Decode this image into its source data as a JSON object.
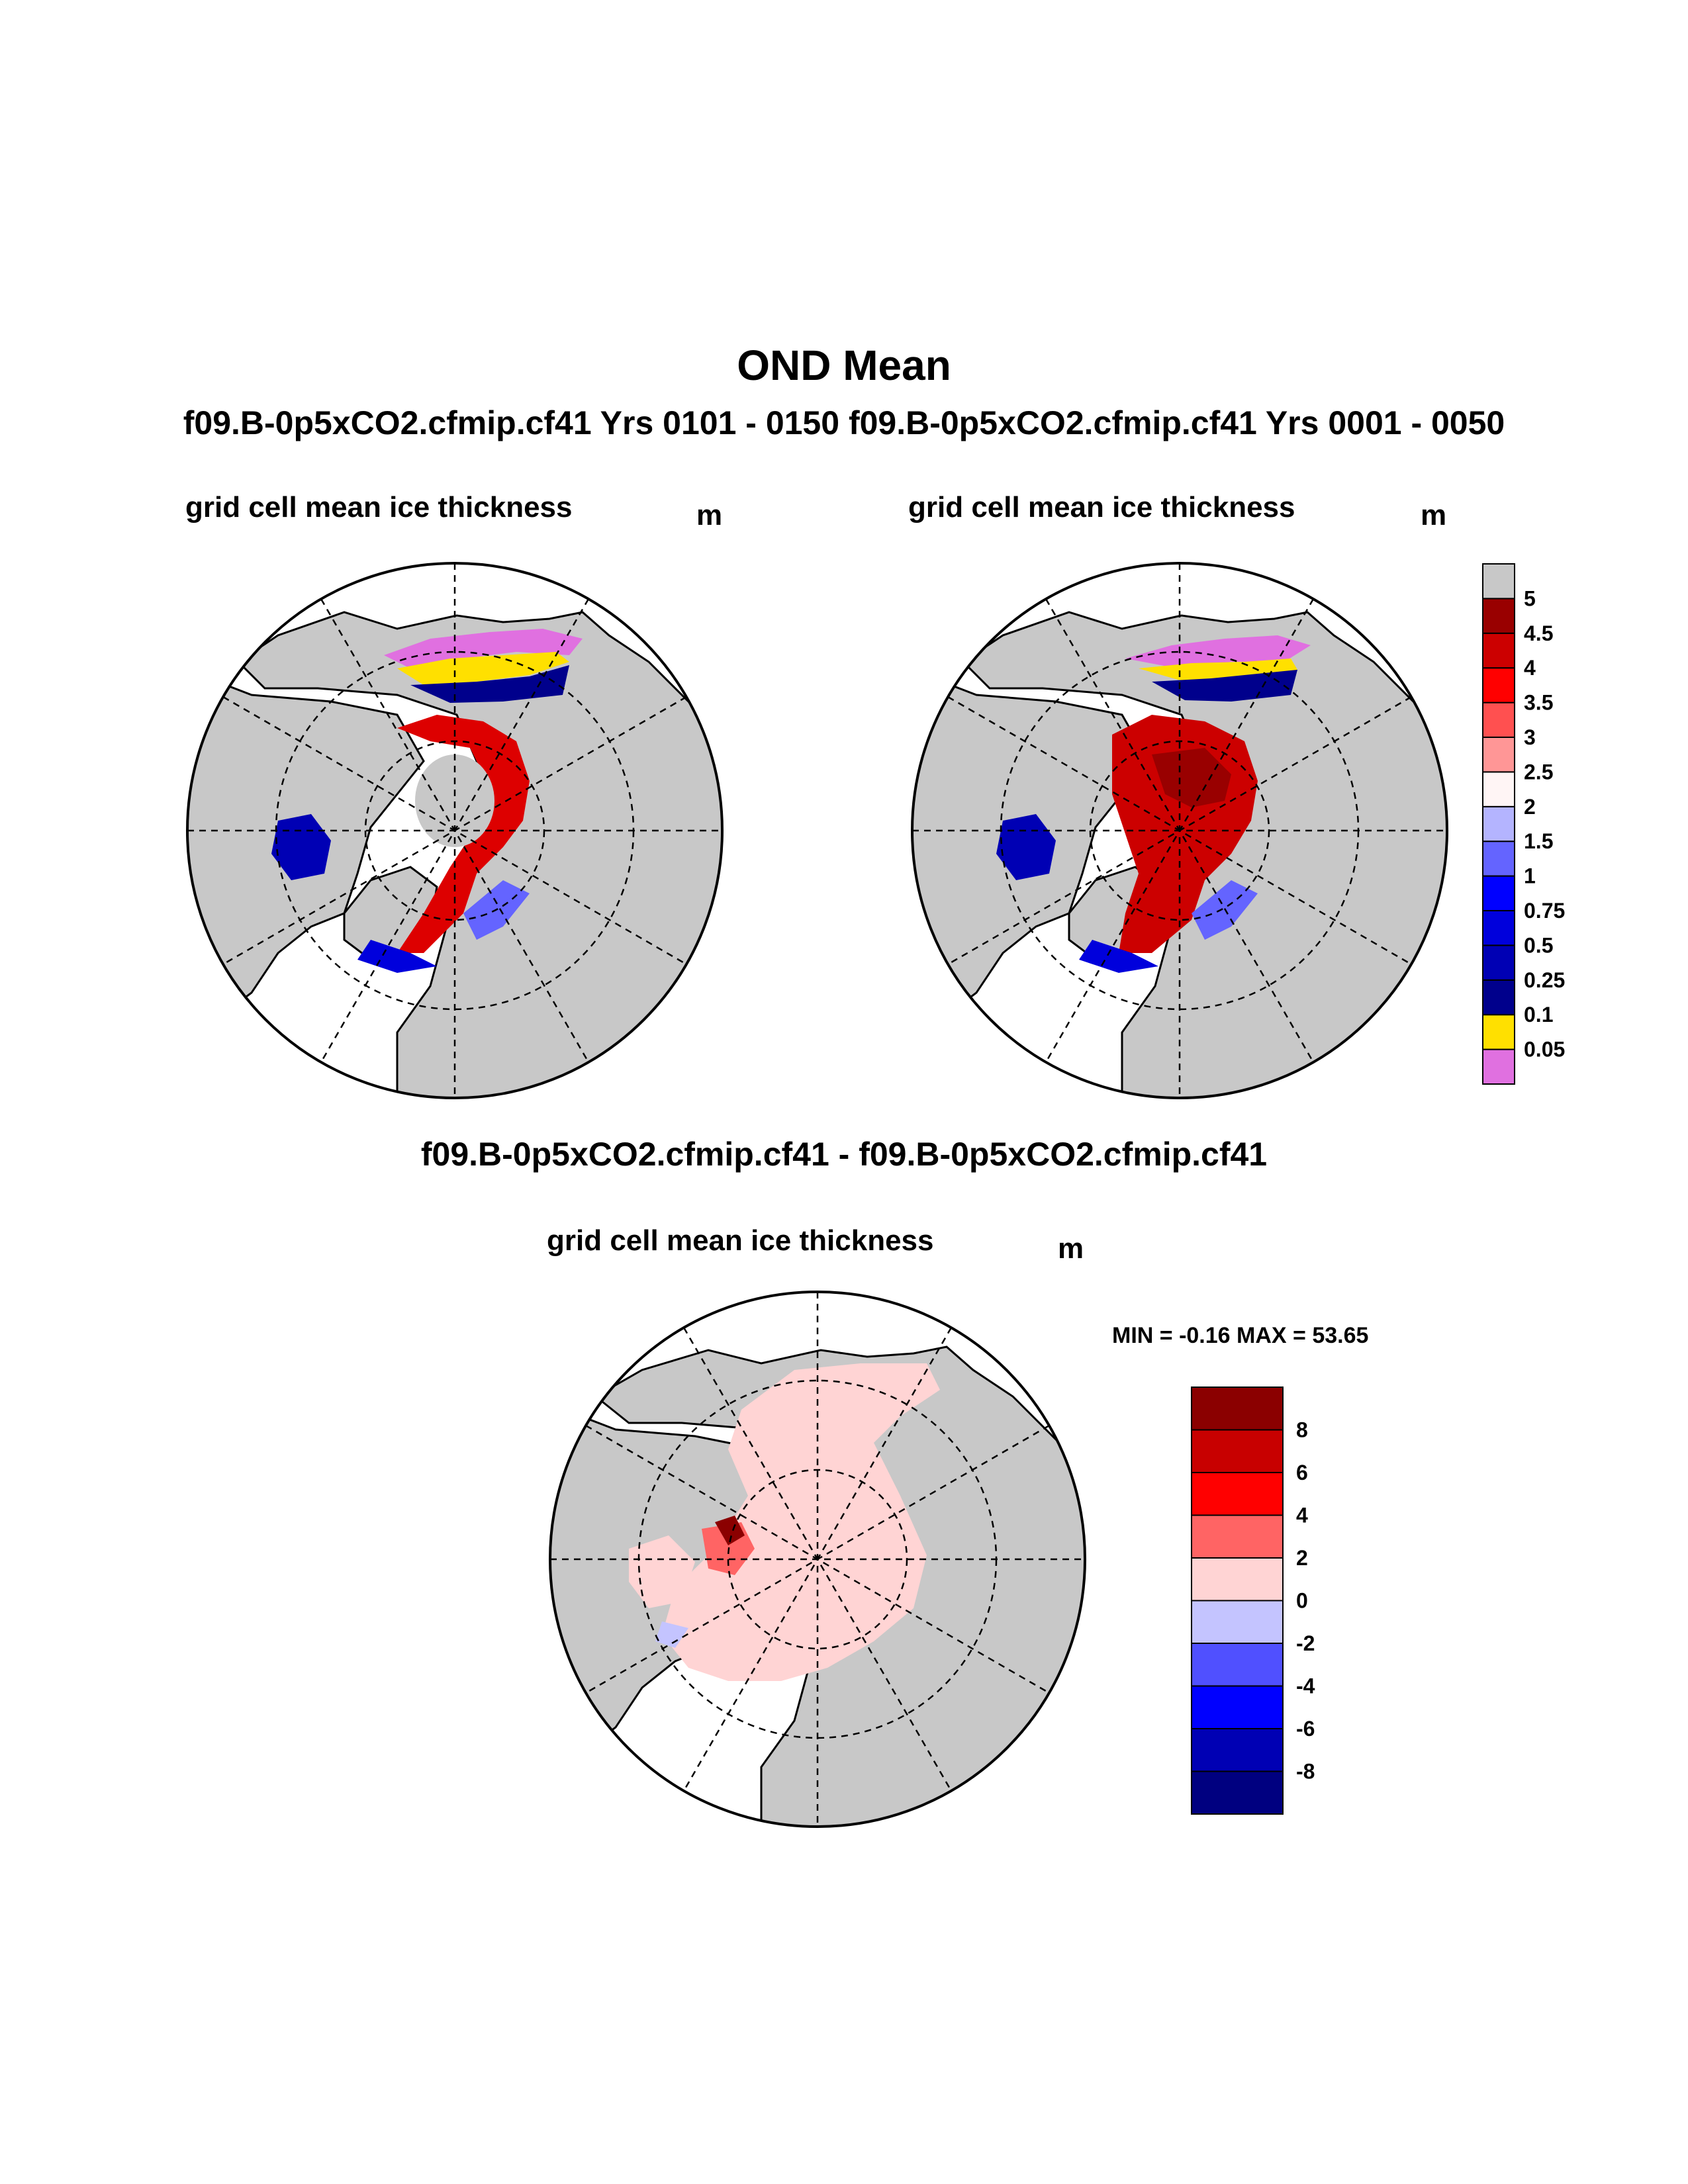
{
  "header": {
    "title": "OND Mean",
    "subtitle": "f09.B-0p5xCO2.cfmip.cf41  Yrs 0101 - 0150 f09.B-0p5xCO2.cfmip.cf41  Yrs 0001 - 0050",
    "diff_title": "f09.B-0p5xCO2.cfmip.cf41 - f09.B-0p5xCO2.cfmip.cf41"
  },
  "panels": [
    {
      "id": "case1",
      "title": "grid cell mean ice thickness",
      "units": "m"
    },
    {
      "id": "case2",
      "title": "grid cell mean ice thickness",
      "units": "m"
    },
    {
      "id": "diff",
      "title": "grid cell mean ice thickness",
      "units": "m",
      "stats": "MIN =  -0.16 MAX =  53.65"
    }
  ],
  "chart_data": [
    {
      "type": "heatmap",
      "projection": "north polar stereographic",
      "title": "grid cell mean ice thickness",
      "units": "m",
      "colorbar": {
        "levels": [
          "0.05",
          "0.1",
          "0.25",
          "0.5",
          "0.75",
          "1",
          "1.5",
          "2",
          "2.5",
          "3",
          "3.5",
          "4",
          "4.5",
          "5"
        ],
        "colors": [
          "#e070e0",
          "#ffe000",
          "#00008c",
          "#0000b4",
          "#0000dc",
          "#0000ff",
          "#6464ff",
          "#b4b4ff",
          "#fff5f5",
          "#ff9696",
          "#ff5050",
          "#ff0000",
          "#cc0000",
          "#990000",
          "#c8c8c8"
        ]
      }
    },
    {
      "type": "heatmap",
      "projection": "north polar stereographic",
      "title": "grid cell mean ice thickness",
      "units": "m",
      "colorbar": "shared with panel 1"
    },
    {
      "type": "heatmap",
      "projection": "north polar stereographic",
      "title": "grid cell mean ice thickness",
      "units": "m",
      "min": -0.16,
      "max": 53.65,
      "colorbar": {
        "levels": [
          "-8",
          "-6",
          "-4",
          "-2",
          "0",
          "2",
          "4",
          "6",
          "8"
        ],
        "colors": [
          "#000080",
          "#0000b4",
          "#0000ff",
          "#5050ff",
          "#c4c4ff",
          "#ffd4d4",
          "#ff6464",
          "#ff0000",
          "#c80000",
          "#8b0000"
        ]
      }
    }
  ],
  "colors": {
    "land": "#c8c8c8",
    "ocean": "#ffffff"
  }
}
